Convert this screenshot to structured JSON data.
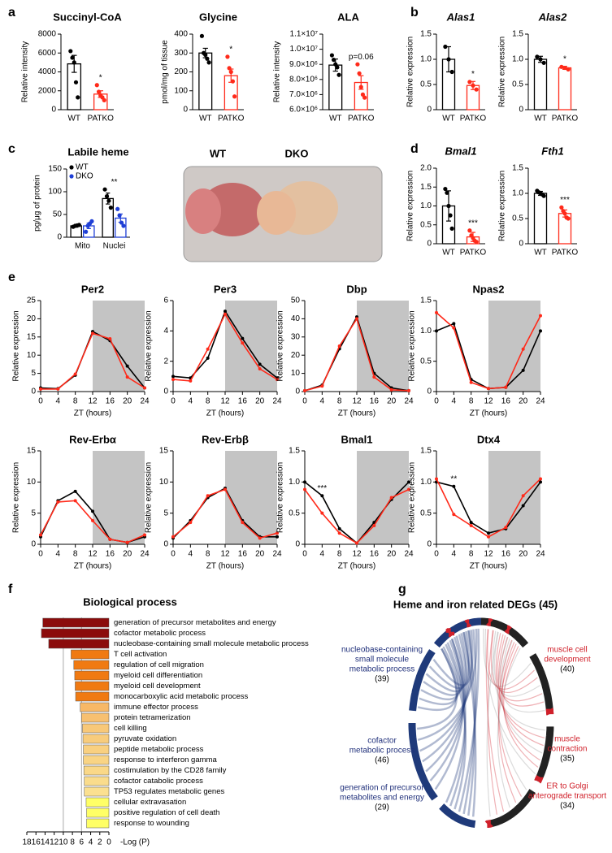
{
  "panel_letters": [
    "a",
    "b",
    "c",
    "d",
    "e",
    "f",
    "g"
  ],
  "photo_labels": [
    "WT",
    "DKO"
  ],
  "chart_data": [
    {
      "type": "bar",
      "title": "Succinyl-CoA",
      "ylabel": "Relative intensity",
      "categories": [
        "WT",
        "PATKO"
      ],
      "values": [
        4850,
        1650
      ],
      "errors": [
        900,
        350
      ],
      "points": [
        [
          6200,
          5500,
          5000,
          2900,
          1300
        ],
        [
          2600,
          1900,
          1500,
          1300,
          1000
        ]
      ],
      "colors": [
        "#000000",
        "#ff2a1a"
      ],
      "ylim": [
        0,
        8000
      ],
      "yticks": [
        0,
        2000,
        4000,
        6000,
        8000
      ],
      "significance": "*"
    },
    {
      "type": "bar",
      "title": "Glycine",
      "ylabel": "pmol/mg of tissue",
      "categories": [
        "WT",
        "PATKO"
      ],
      "values": [
        300,
        180
      ],
      "errors": [
        25,
        35
      ],
      "points": [
        [
          390,
          300,
          290,
          270,
          250
        ],
        [
          280,
          220,
          200,
          150,
          70
        ]
      ],
      "colors": [
        "#000000",
        "#ff2a1a"
      ],
      "ylim": [
        0,
        400
      ],
      "yticks": [
        0,
        100,
        200,
        300,
        400
      ],
      "significance": "*"
    },
    {
      "type": "bar",
      "title": "ALA",
      "ylabel": "Relative intensity",
      "categories": [
        "WT",
        "PATKO"
      ],
      "values": [
        8950000,
        7800000
      ],
      "errors": [
        400000,
        450000
      ],
      "points": [
        [
          9600000,
          9300000,
          9000000,
          8800000,
          8300000
        ],
        [
          9000000,
          8400000,
          7500000,
          7000000,
          6800000
        ]
      ],
      "colors": [
        "#000000",
        "#ff2a1a"
      ],
      "ylim": [
        6000000,
        11000000
      ],
      "yticks": [
        {
          "value": 6000000,
          "label": "6.0×10⁶"
        },
        {
          "value": 7000000,
          "label": "7.0×10⁶"
        },
        {
          "value": 8000000,
          "label": "8.0×10⁶"
        },
        {
          "value": 9000000,
          "label": "9.0×10⁶"
        },
        {
          "value": 10000000,
          "label": "1.0×10⁷"
        },
        {
          "value": 11000000,
          "label": "1.1×10⁷"
        }
      ],
      "significance": "p=0.06"
    },
    {
      "type": "bar",
      "title": "Alas1",
      "title_style": "italic",
      "ylabel": "Relative expression",
      "categories": [
        "WT",
        "PATKO"
      ],
      "values": [
        1.0,
        0.48
      ],
      "errors": [
        0.25,
        0.08
      ],
      "points": [
        [
          1.25,
          1.0,
          0.75
        ],
        [
          0.55,
          0.48,
          0.4
        ]
      ],
      "colors": [
        "#000000",
        "#ff2a1a"
      ],
      "ylim": [
        0,
        1.5
      ],
      "yticks": [
        0,
        0.5,
        {
          "value": 1,
          "label": "1.0"
        },
        1.5
      ],
      "significance": "*"
    },
    {
      "type": "bar",
      "title": "Alas2",
      "title_style": "italic",
      "ylabel": "Relative expression",
      "categories": [
        "WT",
        "PATKO"
      ],
      "values": [
        1.0,
        0.83
      ],
      "errors": [
        0.06,
        0.03
      ],
      "points": [
        [
          1.05,
          1.0,
          0.93
        ],
        [
          0.85,
          0.83,
          0.8
        ]
      ],
      "colors": [
        "#000000",
        "#ff2a1a"
      ],
      "ylim": [
        0,
        1.5
      ],
      "yticks": [
        0,
        0.5,
        {
          "value": 1,
          "label": "1.0"
        },
        1.5
      ],
      "significance": "*"
    },
    {
      "type": "bar",
      "title": "Labile heme",
      "ylabel": "pg/μg of protein",
      "categories": [
        "Mito",
        "Nuclei"
      ],
      "series": [
        {
          "name": "WT",
          "color": "#000000",
          "values": [
            25,
            85
          ],
          "errors": [
            3,
            12
          ],
          "points": [
            [
              23,
              25,
              26,
              27
            ],
            [
              105,
              90,
              80,
              65
            ]
          ]
        },
        {
          "name": "DKO",
          "color": "#1f3fd6",
          "values": [
            25,
            42
          ],
          "errors": [
            6,
            9
          ],
          "points": [
            [
              12,
              25,
              30,
              35
            ],
            [
              62,
              48,
              32,
              25
            ]
          ]
        }
      ],
      "ylim": [
        0,
        150
      ],
      "yticks": [
        0,
        50,
        100,
        150
      ],
      "legend": "upper left",
      "significance": "**"
    },
    {
      "type": "bar",
      "title": "Bmal1",
      "title_style": "italic",
      "ylabel": "Relative expression",
      "categories": [
        "WT",
        "PATKO"
      ],
      "values": [
        1.0,
        0.18
      ],
      "errors": [
        0.4,
        0.12
      ],
      "points": [
        [
          1.45,
          1.35,
          1.0,
          0.75,
          0.4
        ],
        [
          0.35,
          0.22,
          0.15,
          0.08,
          0.05
        ]
      ],
      "colors": [
        "#000000",
        "#ff2a1a"
      ],
      "ylim": [
        0,
        2
      ],
      "yticks": [
        0,
        0.5,
        {
          "value": 1,
          "label": "1.0"
        },
        1.5,
        {
          "value": 2,
          "label": "2.0"
        }
      ],
      "significance": "***"
    },
    {
      "type": "bar",
      "title": "Fth1",
      "title_style": "italic",
      "ylabel": "Relative expression",
      "categories": [
        "WT",
        "PATKO"
      ],
      "values": [
        1.0,
        0.6
      ],
      "errors": [
        0.04,
        0.07
      ],
      "points": [
        [
          1.05,
          1.02,
          1.0,
          0.98,
          0.95
        ],
        [
          0.72,
          0.65,
          0.6,
          0.52,
          0.5
        ]
      ],
      "colors": [
        "#000000",
        "#ff2a1a"
      ],
      "ylim": [
        0,
        1.5
      ],
      "yticks": [
        0,
        0.5,
        {
          "value": 1,
          "label": "1.0"
        },
        1.5
      ],
      "significance": "***"
    },
    {
      "type": "line",
      "title": "Per2",
      "ylabel": "Relative expression",
      "xlabel": "ZT (hours)",
      "x": [
        0,
        4,
        8,
        12,
        16,
        20,
        24
      ],
      "xlim": [
        0,
        24
      ],
      "xticks": [
        0,
        4,
        8,
        12,
        16,
        20,
        24
      ],
      "ylim": [
        0,
        25
      ],
      "yticks": [
        0,
        5,
        10,
        15,
        20,
        25
      ],
      "shaded_x": [
        12,
        24
      ],
      "series": [
        {
          "color": "#000000",
          "values": [
            1,
            0.8,
            4.5,
            16.5,
            14,
            7,
            1
          ]
        },
        {
          "color": "#ff2a1a",
          "values": [
            0.7,
            0.7,
            4.8,
            16,
            14.5,
            4,
            1
          ]
        }
      ]
    },
    {
      "type": "line",
      "title": "Per3",
      "ylabel": "Relative expression",
      "xlabel": "ZT (hours)",
      "x": [
        0,
        4,
        8,
        12,
        16,
        20,
        24
      ],
      "xlim": [
        0,
        24
      ],
      "xticks": [
        0,
        4,
        8,
        12,
        16,
        20,
        24
      ],
      "ylim": [
        0,
        6
      ],
      "yticks": [
        0,
        2,
        4,
        6
      ],
      "shaded_x": [
        12,
        24
      ],
      "series": [
        {
          "color": "#000000",
          "values": [
            1.0,
            0.9,
            2.2,
            5.3,
            3.5,
            1.8,
            0.9
          ]
        },
        {
          "color": "#ff2a1a",
          "values": [
            0.8,
            0.7,
            2.8,
            5.1,
            3.2,
            1.5,
            0.8
          ]
        }
      ]
    },
    {
      "type": "line",
      "title": "Dbp",
      "ylabel": "Relative expression",
      "xlabel": "ZT (hours)",
      "x": [
        0,
        4,
        8,
        12,
        16,
        20,
        24
      ],
      "xlim": [
        0,
        24
      ],
      "xticks": [
        0,
        4,
        8,
        12,
        16,
        20,
        24
      ],
      "ylim": [
        0,
        50
      ],
      "yticks": [
        0,
        10,
        20,
        30,
        40,
        50
      ],
      "shaded_x": [
        12,
        24
      ],
      "series": [
        {
          "color": "#000000",
          "values": [
            0.5,
            3.5,
            23.5,
            41,
            10,
            2,
            0.5
          ]
        },
        {
          "color": "#ff2a1a",
          "values": [
            0.5,
            3,
            25,
            40,
            8,
            1,
            0.5
          ]
        }
      ]
    },
    {
      "type": "line",
      "title": "Npas2",
      "ylabel": "Relative expression",
      "xlabel": "ZT (hours)",
      "x": [
        0,
        4,
        8,
        12,
        16,
        20,
        24
      ],
      "xlim": [
        0,
        24
      ],
      "xticks": [
        0,
        4,
        8,
        12,
        16,
        20,
        24
      ],
      "ylim": [
        0,
        1.5
      ],
      "yticks": [
        0,
        0.5,
        {
          "value": 1,
          "label": "1.0"
        },
        1.5
      ],
      "shaded_x": [
        12,
        24
      ],
      "series": [
        {
          "color": "#000000",
          "values": [
            1.0,
            1.12,
            0.2,
            0.05,
            0.07,
            0.35,
            1.0
          ]
        },
        {
          "color": "#ff2a1a",
          "values": [
            1.3,
            1.05,
            0.15,
            0.05,
            0.07,
            0.7,
            1.25
          ]
        }
      ]
    },
    {
      "type": "line",
      "title": "Rev-Erbα",
      "ylabel": "Relative expression",
      "xlabel": "ZT (hours)",
      "x": [
        0,
        4,
        8,
        12,
        16,
        20,
        24
      ],
      "xlim": [
        0,
        24
      ],
      "xticks": [
        0,
        4,
        8,
        12,
        16,
        20,
        24
      ],
      "ylim": [
        0,
        15
      ],
      "yticks": [
        0,
        5,
        10,
        15
      ],
      "shaded_x": [
        12,
        24
      ],
      "series": [
        {
          "color": "#000000",
          "values": [
            1.2,
            7,
            8.5,
            5.3,
            0.8,
            0.3,
            1.2
          ]
        },
        {
          "color": "#ff2a1a",
          "values": [
            1.5,
            6.8,
            7,
            3.8,
            0.8,
            0.3,
            1.5
          ]
        }
      ]
    },
    {
      "type": "line",
      "title": "Rev-Erbβ",
      "ylabel": "Relative expression",
      "xlabel": "ZT (hours)",
      "x": [
        0,
        4,
        8,
        12,
        16,
        20,
        24
      ],
      "xlim": [
        0,
        24
      ],
      "xticks": [
        0,
        4,
        8,
        12,
        16,
        20,
        24
      ],
      "ylim": [
        0,
        15
      ],
      "yticks": [
        0,
        5,
        10,
        15
      ],
      "shaded_x": [
        12,
        24
      ],
      "series": [
        {
          "color": "#000000",
          "values": [
            1,
            3.8,
            7.5,
            9,
            3.8,
            1.2,
            1.2
          ]
        },
        {
          "color": "#ff2a1a",
          "values": [
            1.2,
            3.5,
            7.8,
            8.8,
            3.5,
            1,
            1.8
          ]
        }
      ]
    },
    {
      "type": "line",
      "title": "Bmal1",
      "ylabel": "Relative expression",
      "xlabel": "ZT (hours)",
      "x": [
        0,
        4,
        8,
        12,
        16,
        20,
        24
      ],
      "xlim": [
        0,
        24
      ],
      "xticks": [
        0,
        4,
        8,
        12,
        16,
        20,
        24
      ],
      "ylim": [
        0,
        1.5
      ],
      "yticks": [
        0,
        0.5,
        {
          "value": 1,
          "label": "1.0"
        },
        1.5
      ],
      "shaded_x": [
        12,
        24
      ],
      "annotation": {
        "text": "***",
        "x": 4
      },
      "series": [
        {
          "color": "#000000",
          "values": [
            1.0,
            0.78,
            0.25,
            0.02,
            0.35,
            0.72,
            1.0
          ]
        },
        {
          "color": "#ff2a1a",
          "values": [
            0.88,
            0.5,
            0.18,
            0.02,
            0.3,
            0.75,
            0.88
          ]
        }
      ]
    },
    {
      "type": "line",
      "title": "Dtx4",
      "ylabel": "Relative expression",
      "xlabel": "ZT (hours)",
      "x": [
        0,
        4,
        8,
        12,
        16,
        20,
        24
      ],
      "xlim": [
        0,
        24
      ],
      "xticks": [
        0,
        4,
        8,
        12,
        16,
        20,
        24
      ],
      "ylim": [
        0,
        1.5
      ],
      "yticks": [
        0,
        0.5,
        {
          "value": 1,
          "label": "1.0"
        },
        1.5
      ],
      "shaded_x": [
        12,
        24
      ],
      "annotation": {
        "text": "**",
        "x": 4
      },
      "series": [
        {
          "color": "#000000",
          "values": [
            1.0,
            0.93,
            0.35,
            0.18,
            0.25,
            0.62,
            1.0
          ]
        },
        {
          "color": "#ff2a1a",
          "values": [
            1.05,
            0.48,
            0.3,
            0.12,
            0.27,
            0.78,
            1.05
          ]
        }
      ]
    },
    {
      "type": "hbar",
      "title": "Biological process",
      "xlabel": "-Log (P)",
      "xlim": [
        18,
        0
      ],
      "xticks": [
        18,
        16,
        14,
        12,
        10,
        8,
        6,
        4,
        2,
        0
      ],
      "vlines": [
        10,
        6
      ],
      "categories": [
        "generation of precursor metabolites and energy",
        "cofactor metabolic process",
        "nucleobase-containing small molecule metabolic process",
        "T cell activation",
        "regulation of cell migration",
        "myeloid cell differentiation",
        "myeloid cell development",
        "monocarboxylic acid metabolic process",
        "immune effector process",
        "protein tetramerization",
        "cell killing",
        "pyruvate oxidation",
        "peptide metabolic process",
        "response to interferon gamma",
        "costimulation by the CD28 family",
        "cofactor catabolic process",
        "TP53 regulates metabolic genes",
        "cellular extravasation",
        "positive regulation of cell death",
        "response to wounding"
      ],
      "values": [
        14.5,
        14.8,
        13.2,
        8.3,
        7.7,
        7.5,
        7.4,
        7.3,
        6.3,
        6.0,
        5.8,
        5.7,
        5.6,
        5.6,
        5.5,
        5.4,
        5.4,
        5.0,
        4.9,
        4.9
      ],
      "colors": [
        "#8b0c0c",
        "#8b0c0c",
        "#8b0c0c",
        "#f07a12",
        "#f07a12",
        "#f07a12",
        "#f07a12",
        "#f07a12",
        "#f7b866",
        "#f7c070",
        "#f8c878",
        "#f8cc7c",
        "#f9d080",
        "#f9d484",
        "#fad888",
        "#fadc8c",
        "#fbe090",
        "#ffff66",
        "#ffff66",
        "#ffff66"
      ]
    },
    {
      "type": "chord",
      "title": "Heme and iron related DEGs (45)",
      "groups": [
        {
          "label": [
            "nucleobase-containing",
            "small molecule",
            "metabolic process"
          ],
          "count": {
            "value": 39,
            "label": "(39)"
          },
          "label_color": "#1f2f7a",
          "arc_color": "#1f3a7a"
        },
        {
          "label": [
            "cofactor",
            "metabolic process"
          ],
          "count": {
            "value": 46,
            "label": "(46)"
          },
          "label_color": "#1f2f7a",
          "arc_color": "#1f3a7a"
        },
        {
          "label": [
            "generation of precursor",
            "metabolites and energy"
          ],
          "count": {
            "value": 29,
            "label": "(29)"
          },
          "label_color": "#1f2f7a",
          "arc_color": "#1f3a7a"
        },
        {
          "label": [
            "muscle cell",
            "development"
          ],
          "count": {
            "value": 40,
            "label": "(40)"
          },
          "label_color": "#d0202a",
          "arc_color": "#222222"
        },
        {
          "label": [
            "muscle",
            "contraction"
          ],
          "count": {
            "value": 35,
            "label": "(35)"
          },
          "label_color": "#d0202a",
          "arc_color": "#222222"
        },
        {
          "label": [
            "ER to Golgi",
            "anterograde transport"
          ],
          "count": {
            "value": 34,
            "label": "(34)"
          },
          "label_color": "#d0202a",
          "arc_color": "#222222"
        }
      ]
    }
  ]
}
